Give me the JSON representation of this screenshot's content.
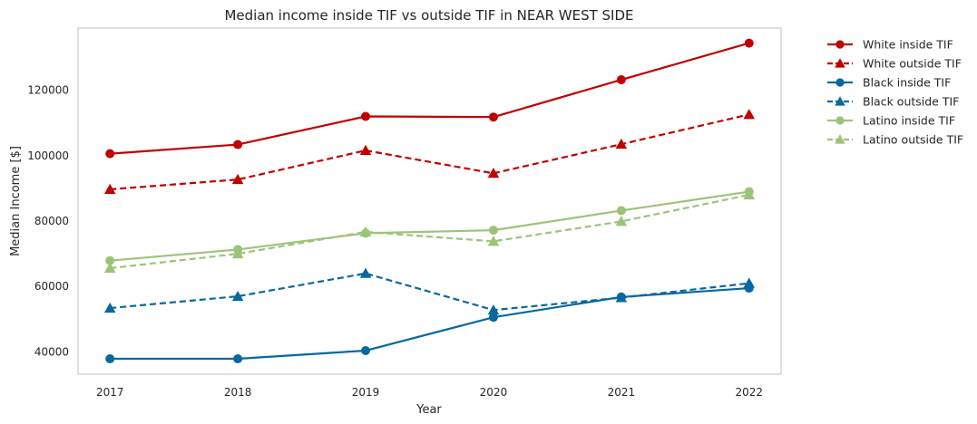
{
  "chart_data": {
    "type": "line",
    "title": "Median income inside TIF vs outside TIF in NEAR WEST SIDE",
    "xlabel": "Year",
    "ylabel": "Median Income [$]",
    "x": [
      "2017",
      "2018",
      "2019",
      "2020",
      "2021",
      "2022"
    ],
    "xlim": [
      2016.75,
      2022.25
    ],
    "ylim": [
      33200,
      139000
    ],
    "yticks": [
      40000,
      60000,
      80000,
      100000,
      120000
    ],
    "ytick_labels": [
      "40000",
      "60000",
      "80000",
      "100000",
      "120000"
    ],
    "grid": false,
    "legend_position": "outside-right-top",
    "series": [
      {
        "name": "White inside TIF",
        "color": "#c00000",
        "dash": "solid",
        "marker": "circle",
        "values": [
          100600,
          103400,
          112000,
          111800,
          123200,
          134400
        ]
      },
      {
        "name": "White outside TIF",
        "color": "#c00000",
        "dash": "dashed",
        "marker": "triangle",
        "values": [
          89700,
          92700,
          101600,
          94600,
          103500,
          112600
        ]
      },
      {
        "name": "Black inside TIF",
        "color": "#0868a0",
        "dash": "solid",
        "marker": "circle",
        "values": [
          37900,
          37900,
          40400,
          50600,
          56800,
          59500
        ]
      },
      {
        "name": "Black outside TIF",
        "color": "#0868a0",
        "dash": "dashed",
        "marker": "triangle",
        "values": [
          53400,
          57000,
          64000,
          52800,
          56600,
          61000
        ]
      },
      {
        "name": "Latino inside TIF",
        "color": "#9bc47a",
        "dash": "solid",
        "marker": "circle",
        "values": [
          67900,
          71300,
          76300,
          77200,
          83200,
          89000
        ]
      },
      {
        "name": "Latino outside TIF",
        "color": "#9bc47a",
        "dash": "dashed",
        "marker": "triangle",
        "values": [
          65600,
          70000,
          76700,
          73800,
          79900,
          88000
        ]
      }
    ]
  }
}
